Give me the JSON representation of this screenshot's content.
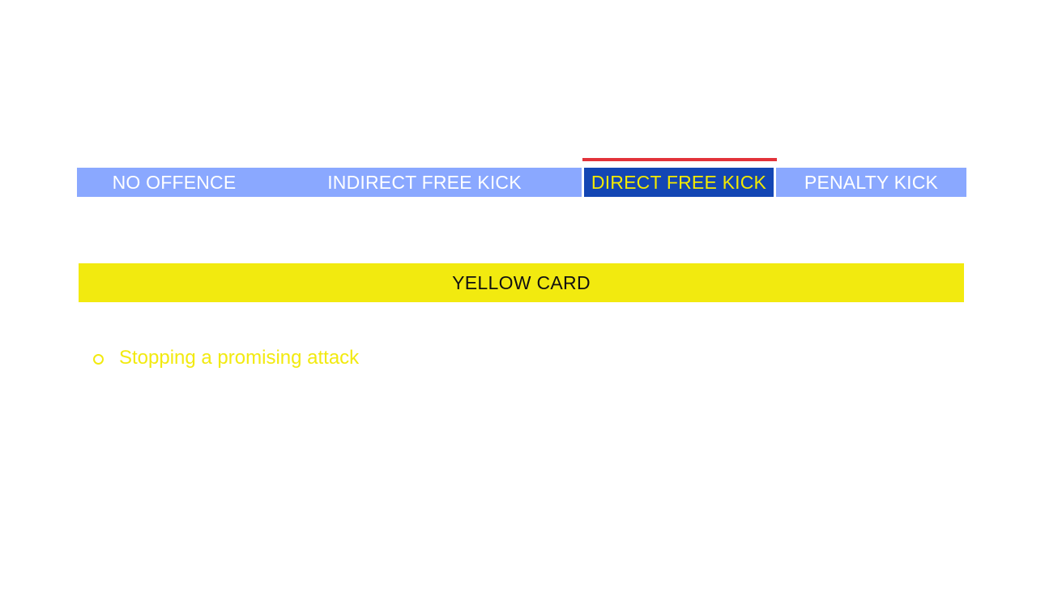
{
  "tabs": [
    {
      "label": "NO OFFENCE",
      "active": false
    },
    {
      "label": "INDIRECT FREE KICK",
      "active": false
    },
    {
      "label": "DIRECT FREE KICK",
      "active": true
    },
    {
      "label": "PENALTY KICK",
      "active": false
    }
  ],
  "card": {
    "label": "YELLOW CARD",
    "color": "#f2ea0f"
  },
  "bullets": [
    {
      "icon": "circle-bullet-icon",
      "text": "Stopping a promising attack"
    }
  ],
  "colors": {
    "tab_bar": "#8aa8ff",
    "active_tab": "#1346b4",
    "active_text": "#f3ea00",
    "indicator": "#e2323a"
  }
}
